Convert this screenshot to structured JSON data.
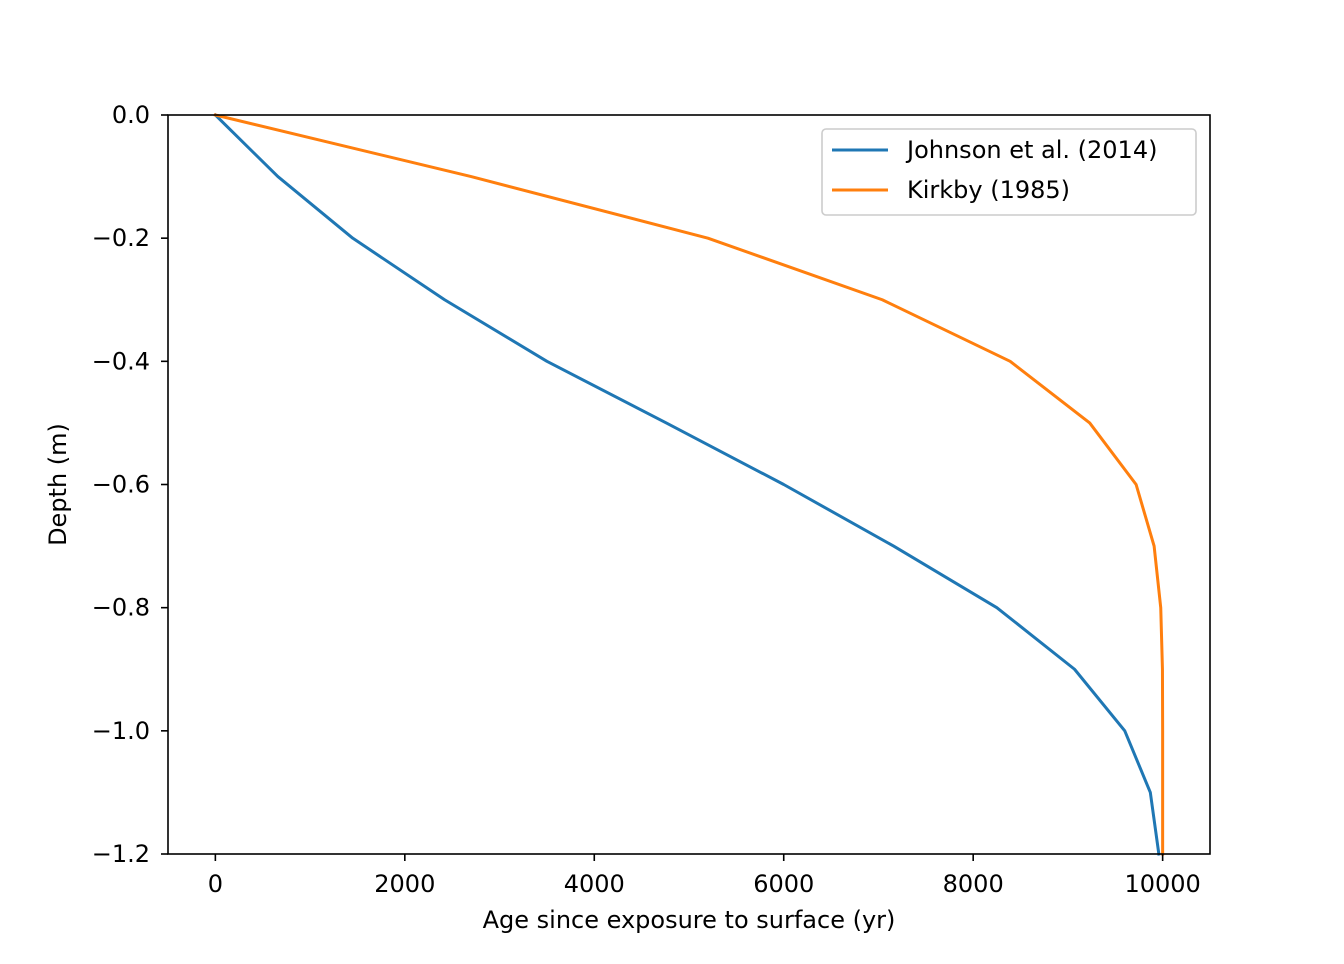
{
  "chart_data": {
    "type": "line",
    "title": "",
    "xlabel": "Age since exposure to surface (yr)",
    "ylabel": "Depth (m)",
    "xlim": [
      -500,
      10500
    ],
    "ylim": [
      -1.2,
      0.0
    ],
    "xticks": [
      0,
      2000,
      4000,
      6000,
      8000,
      10000
    ],
    "xtick_labels": [
      "0",
      "2000",
      "4000",
      "6000",
      "8000",
      "10000"
    ],
    "yticks": [
      0.0,
      -0.2,
      -0.4,
      -0.6,
      -0.8,
      -1.0,
      -1.2
    ],
    "ytick_labels": [
      "0.0",
      "−0.2",
      "−0.4",
      "−0.6",
      "−0.8",
      "−1.0",
      "−1.2"
    ],
    "grid": false,
    "legend_position": "top-right",
    "series": [
      {
        "name": "Johnson et al. (2014)",
        "color": "#1f77b4",
        "x": [
          0,
          660,
          1450,
          2420,
          3500,
          4760,
          6000,
          7160,
          8250,
          9070,
          9600,
          9870,
          9960
        ],
        "y": [
          0.0,
          -0.1,
          -0.2,
          -0.3,
          -0.4,
          -0.5,
          -0.6,
          -0.7,
          -0.8,
          -0.9,
          -1.0,
          -1.1,
          -1.2
        ]
      },
      {
        "name": "Kirkby (1985)",
        "color": "#ff7f0e",
        "x": [
          0,
          2700,
          5200,
          7040,
          8390,
          9230,
          9720,
          9910,
          9980,
          9998,
          10000,
          10000,
          10000
        ],
        "y": [
          0.0,
          -0.1,
          -0.2,
          -0.3,
          -0.4,
          -0.5,
          -0.6,
          -0.7,
          -0.8,
          -0.9,
          -1.0,
          -1.1,
          -1.2
        ]
      }
    ]
  }
}
